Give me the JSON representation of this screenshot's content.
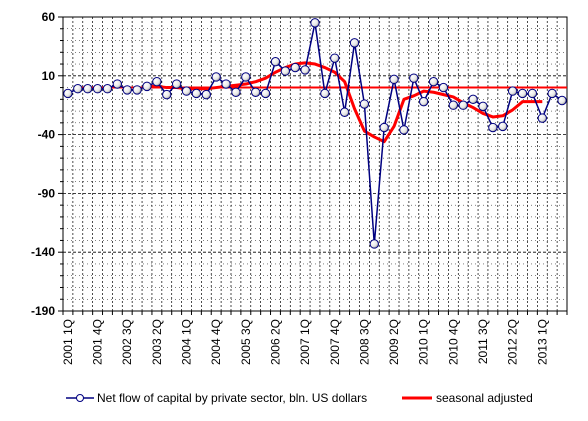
{
  "chart_data": {
    "type": "line",
    "title": "",
    "xlabel": "",
    "ylabel": "",
    "ylim": [
      -190,
      60
    ],
    "yticks": [
      60,
      10,
      -40,
      -90,
      -140,
      -190
    ],
    "grid": true,
    "legend_position": "bottom",
    "x": [
      "2001 1Q",
      "2001 2Q",
      "2001 3Q",
      "2001 4Q",
      "2002 1Q",
      "2002 2Q",
      "2002 3Q",
      "2002 4Q",
      "2003 1Q",
      "2003 2Q",
      "2003 3Q",
      "2003 4Q",
      "2004 1Q",
      "2004 2Q",
      "2004 3Q",
      "2004 4Q",
      "2005 1Q",
      "2005 2Q",
      "2005 3Q",
      "2005 4Q",
      "2006 1Q",
      "2006 2Q",
      "2006 3Q",
      "2006 4Q",
      "2007 1Q",
      "2007 2Q",
      "2007 3Q",
      "2007 4Q",
      "2008 1Q",
      "2008 2Q",
      "2008 3Q",
      "2008 4Q",
      "2009 1Q",
      "2009 2Q",
      "2009 3Q",
      "2009 4Q",
      "2010 1Q",
      "2010 2Q",
      "2010 3Q",
      "2010 4Q",
      "2011 1Q",
      "2011 2Q",
      "2011 3Q",
      "2011 4Q",
      "2012 1Q",
      "2012 2Q",
      "2012 3Q",
      "2012 4Q",
      "2013 1Q",
      "2013 2Q",
      "2013 3Q"
    ],
    "xtick_labels": [
      "2001 1Q",
      "2001 4Q",
      "2002 3Q",
      "2003 2Q",
      "2004 1Q",
      "2004 4Q",
      "2005 3Q",
      "2006 2Q",
      "2007 1Q",
      "2007 4Q",
      "2008 3Q",
      "2009 2Q",
      "2010 1Q",
      "2010 4Q",
      "2011 3Q",
      "2012 2Q",
      "2013 1Q"
    ],
    "series": [
      {
        "name": "Net flow of capital by private sector, bln. US dollars",
        "color": "#000080",
        "marker": "circle",
        "values": [
          -5,
          -1,
          -1,
          -1,
          -1,
          3,
          -2,
          -2,
          1,
          5,
          -6,
          3,
          -3,
          -5,
          -6,
          9,
          3,
          -4,
          9,
          -4,
          -5,
          22,
          14,
          17,
          15,
          55,
          -5,
          25,
          -21,
          38,
          -14,
          -133,
          -34,
          7,
          -36,
          8,
          -12,
          5,
          0,
          -15,
          -15,
          -10,
          -16,
          -34,
          -33,
          -3,
          -5,
          -5,
          -26,
          -5,
          -11
        ]
      },
      {
        "name": "seasonal adjusted",
        "color": "#ff0000",
        "values": [
          null,
          null,
          null,
          null,
          null,
          null,
          null,
          null,
          1,
          1,
          0,
          0,
          -1,
          -1,
          -1,
          0,
          1,
          2,
          3,
          5,
          8,
          13,
          17,
          20,
          21,
          20,
          17,
          13,
          5,
          -18,
          -37,
          -42,
          -46,
          -33,
          -10,
          -7,
          -3,
          -4,
          -6,
          -8,
          -13,
          -17,
          -22,
          -25,
          -24,
          -19,
          -12,
          -12,
          -12,
          null,
          null
        ]
      }
    ],
    "reference_line": {
      "value": 0,
      "color": "#ff0000"
    },
    "legend": [
      "Net flow of capital by private sector, bln. US dollars",
      "seasonal adjusted"
    ]
  }
}
